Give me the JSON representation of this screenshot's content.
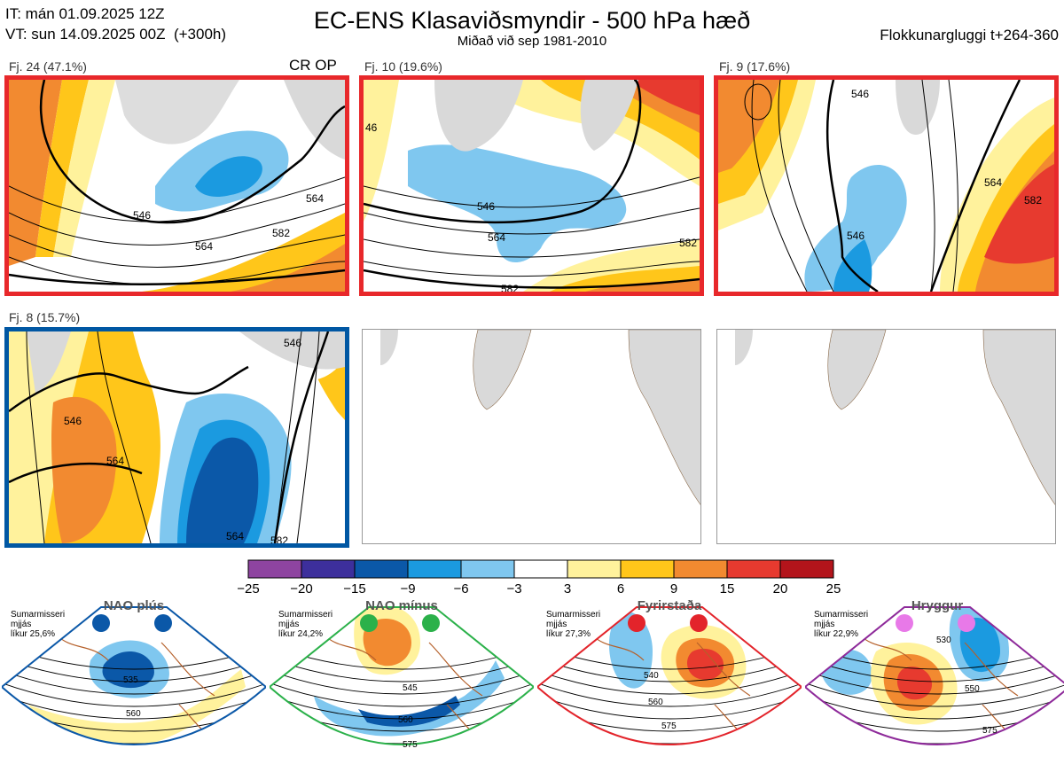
{
  "header": {
    "it": "IT: mán 01.09.2025 12Z",
    "vt": "VT: sun 14.09.2025 00Z  (+300h)",
    "title": "EC-ENS Klasaviðsmyndir - 500 hPa hæð",
    "subtitle": "Miðað við sep 1981-2010",
    "window": "Flokkunargluggi t+264-360"
  },
  "panels": [
    {
      "label": "Fj. 24 (47.1%)",
      "tag": "CR OP",
      "contours": [
        "546",
        "564",
        "582",
        "564"
      ]
    },
    {
      "label": "Fj. 10 (19.6%)",
      "contours": [
        "546",
        "564",
        "582",
        "46",
        "582"
      ]
    },
    {
      "label": "Fj. 9 (17.6%)",
      "contours": [
        "546",
        "564",
        "582",
        "546"
      ]
    },
    {
      "label": "Fj. 8 (15.7%)",
      "contours": [
        "546",
        "564",
        "582",
        "546",
        "564"
      ]
    }
  ],
  "colorbar": {
    "ticks": [
      "−25",
      "−20",
      "−15",
      "−9",
      "−6",
      "−3",
      "3",
      "6",
      "9",
      "15",
      "20",
      "25"
    ],
    "colors": [
      "#8e44a0",
      "#3d2f9c",
      "#0b58a8",
      "#1b9ae0",
      "#7fc7ef",
      "#ffffff",
      "#fff29c",
      "#ffc61a",
      "#f28a30",
      "#e73a2f",
      "#b3141b"
    ]
  },
  "regimes": [
    {
      "title": "NAO plús",
      "text": "Sumarmisseri\nmjjás\nlíkur 25,6%",
      "dot": "#0b58a8",
      "frame": "#0b58a8",
      "labels": [
        "535",
        "560"
      ]
    },
    {
      "title": "NAO mínus",
      "text": "Sumarmisseri\nmjjás\nlíkur 24,2%",
      "dot": "#2bb14a",
      "frame": "#2bb14a",
      "labels": [
        "545",
        "560",
        "575"
      ]
    },
    {
      "title": "Fyrirstaða",
      "text": "Sumarmisseri\nmjjás\nlíkur 27,3%",
      "dot": "#e3242b",
      "frame": "#e3242b",
      "labels": [
        "540",
        "560",
        "575"
      ]
    },
    {
      "title": "Hryggur",
      "text": "Sumarmisseri\nmjjás\nlíkur 22,9%",
      "dot": "#e879e8",
      "frame": "#8e2a9a",
      "labels": [
        "530",
        "550",
        "575"
      ]
    }
  ]
}
